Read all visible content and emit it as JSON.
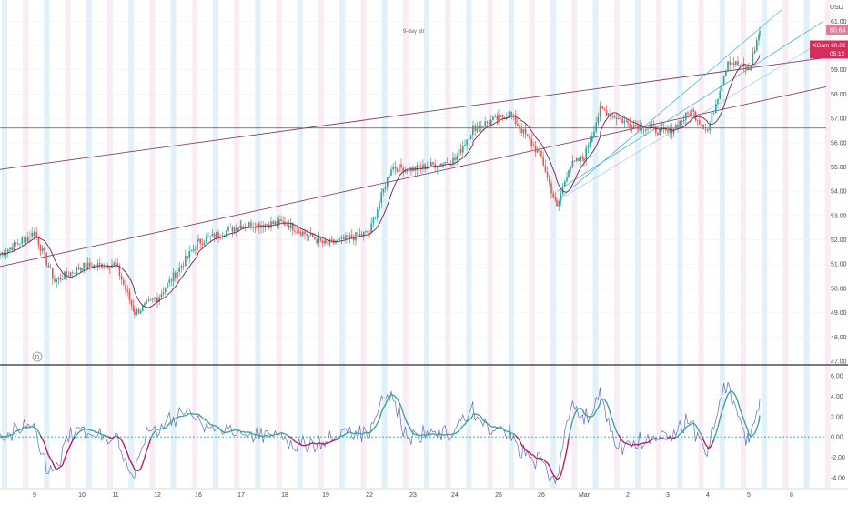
{
  "currency": "USD",
  "annotation": "9-day atr",
  "colors": {
    "up": "#26a69a",
    "down": "#ef5350",
    "ma": "#7b1f4a",
    "trend_purple": "#8b3a6b",
    "trend_cyan": "#4fb6d6",
    "h_line": "#555555",
    "osc_raw": "#5b6dbe",
    "osc_up": "#3aa39a",
    "osc_down": "#c2185b",
    "zero_line": "#26a69a",
    "band_blue": "#d6e9f8",
    "band_pink": "#f5e6ef",
    "tag_red": "#d62d5b",
    "tag_pink": "#e27c97",
    "divider": "#2a2e39",
    "axis_text": "#4a4a4a"
  },
  "price_tags": {
    "last": "60.64",
    "current_label": "XGam",
    "current": "60.02",
    "countdown": "05:12"
  },
  "chart_data": [
    {
      "type": "line",
      "name": "price",
      "ylim": [
        47,
        61.5
      ],
      "y_ticks": [
        "61.00",
        "60.00",
        "59.00",
        "58.00",
        "57.00",
        "56.00",
        "55.00",
        "54.00",
        "53.00",
        "52.00",
        "51.00",
        "50.00",
        "49.00",
        "48.00",
        "47.00"
      ],
      "x_ticks": [
        "9",
        "10",
        "11",
        "12",
        "16",
        "17",
        "18",
        "19",
        "22",
        "23",
        "24",
        "25",
        "26",
        "Mar",
        "2",
        "3",
        "4",
        "5",
        "8"
      ],
      "key_points": [
        {
          "x": "8",
          "y": 51.4
        },
        {
          "x": "9",
          "y": 52.3
        },
        {
          "x": "9.5",
          "y": 50.3
        },
        {
          "x": "10",
          "y": 50.9
        },
        {
          "x": "11",
          "y": 51.0
        },
        {
          "x": "11.5",
          "y": 49.0
        },
        {
          "x": "12",
          "y": 49.6
        },
        {
          "x": "16",
          "y": 51.9
        },
        {
          "x": "17",
          "y": 52.6
        },
        {
          "x": "18",
          "y": 52.7
        },
        {
          "x": "19",
          "y": 51.8
        },
        {
          "x": "22",
          "y": 52.3
        },
        {
          "x": "22.5",
          "y": 55.0
        },
        {
          "x": "23",
          "y": 54.9
        },
        {
          "x": "24",
          "y": 55.3
        },
        {
          "x": "24.5",
          "y": 56.6
        },
        {
          "x": "25",
          "y": 57.0
        },
        {
          "x": "25.5",
          "y": 57.2
        },
        {
          "x": "26",
          "y": 55.4
        },
        {
          "x": "26.3",
          "y": 53.3
        },
        {
          "x": "26.6",
          "y": 55.0
        },
        {
          "x": "Mar",
          "y": 55.4
        },
        {
          "x": "Mar.5",
          "y": 57.4
        },
        {
          "x": "2",
          "y": 56.8
        },
        {
          "x": "3",
          "y": 56.4
        },
        {
          "x": "3.5",
          "y": 57.3
        },
        {
          "x": "4",
          "y": 56.5
        },
        {
          "x": "4.5",
          "y": 59.4
        },
        {
          "x": "5",
          "y": 59.0
        },
        {
          "x": "5.3",
          "y": 60.6
        }
      ],
      "x_tick_positions": [
        38,
        90,
        127,
        173,
        218,
        265,
        313,
        358,
        406,
        454,
        500,
        548,
        595,
        642,
        690,
        734,
        778,
        823,
        870
      ]
    },
    {
      "type": "line",
      "name": "oscillator",
      "ylim": [
        -5,
        7
      ],
      "y_ticks": [
        "6.00",
        "4.00",
        "2.00",
        "0.00",
        "-2.00",
        "-4.00"
      ]
    }
  ]
}
